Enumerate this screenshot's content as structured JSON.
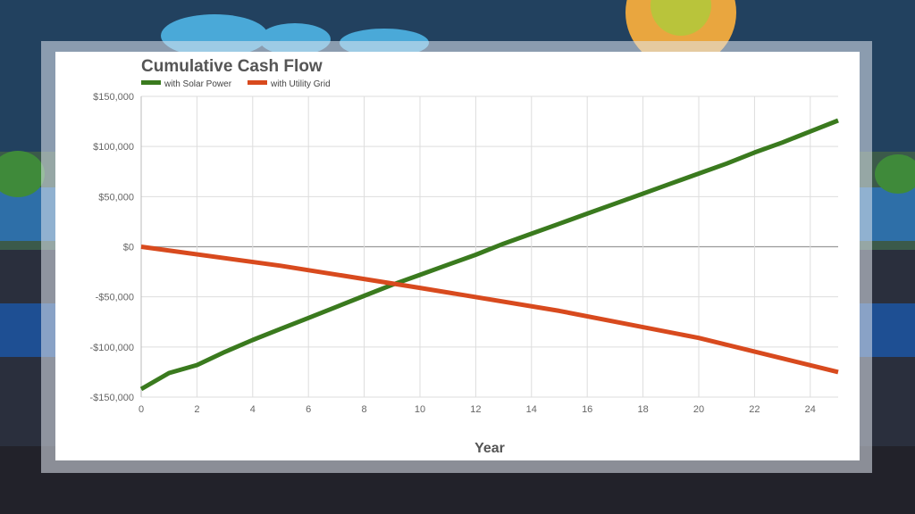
{
  "chart_data": {
    "type": "line",
    "title": "Cumulative Cash Flow",
    "xlabel": "Year",
    "ylabel": "",
    "xlim": [
      0,
      25
    ],
    "ylim": [
      -150000,
      150000
    ],
    "x_ticks": [
      0,
      2,
      4,
      6,
      8,
      10,
      12,
      14,
      16,
      18,
      20,
      22,
      24
    ],
    "y_ticks": [
      150000,
      100000,
      50000,
      0,
      -50000,
      -100000,
      -150000
    ],
    "y_tick_labels": [
      "$150,000",
      "$100,000",
      "$50,000",
      "$0",
      "-$50,000",
      "-$100,000",
      "-$150,000"
    ],
    "grid": true,
    "legend": "top-left",
    "series": [
      {
        "name": "with Solar Power",
        "color": "#3a7a1e",
        "x": [
          0,
          1,
          2,
          3,
          4,
          5,
          6,
          7,
          8,
          9,
          10,
          11,
          12,
          13,
          14,
          15,
          16,
          17,
          18,
          19,
          20,
          21,
          22,
          23,
          24,
          25
        ],
        "values": [
          -142000,
          -126000,
          -118000,
          -105000,
          -93000,
          -82000,
          -71000,
          -60000,
          -49000,
          -38000,
          -28000,
          -18000,
          -8000,
          3000,
          13000,
          23000,
          33000,
          43000,
          53000,
          63000,
          73000,
          83000,
          94000,
          104000,
          115000,
          126000
        ]
      },
      {
        "name": "with Utility Grid",
        "color": "#d84a1e",
        "x": [
          0,
          5,
          10,
          15,
          20,
          25
        ],
        "values": [
          0,
          -19000,
          -41000,
          -64000,
          -91000,
          -125000
        ]
      }
    ]
  }
}
